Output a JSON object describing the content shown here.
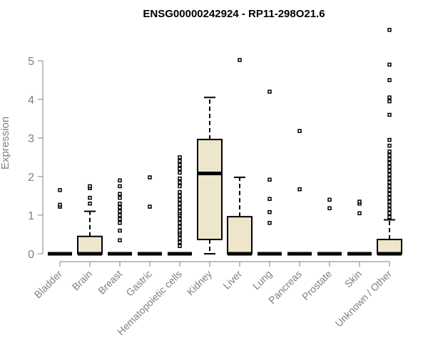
{
  "chart_data": {
    "type": "box",
    "title": "ENSG00000242924 - RP11-298O21.6",
    "xlabel": "",
    "ylabel": "Expression",
    "ylim": [
      0,
      5.8
    ],
    "yticks": [
      0,
      1,
      2,
      3,
      4,
      5
    ],
    "grid": false,
    "colors": {
      "box_fill": "#ede6cc",
      "stroke": "#000000",
      "axis_text": "#808080",
      "title": "#000000"
    },
    "categories": [
      "Bladder",
      "Brain",
      "Breast",
      "Gastric",
      "Hematopoietic cells",
      "Kidney",
      "Liver",
      "Lung",
      "Pancreas",
      "Prostate",
      "Skin",
      "Unknown / Other"
    ],
    "boxes": [
      {
        "q1": 0,
        "median": 0,
        "q3": 0,
        "whisker_low": 0,
        "whisker_high": 0,
        "outliers": [
          1.22,
          1.27,
          1.65
        ]
      },
      {
        "q1": 0,
        "median": 0,
        "q3": 0.45,
        "whisker_low": 0,
        "whisker_high": 1.1,
        "outliers": [
          1.3,
          1.45,
          1.7,
          1.75
        ]
      },
      {
        "q1": 0,
        "median": 0,
        "q3": 0,
        "whisker_low": 0,
        "whisker_high": 0,
        "outliers": [
          0.35,
          0.6,
          0.8,
          0.9,
          1.0,
          1.1,
          1.2,
          1.3,
          1.45,
          1.55,
          1.75,
          1.9
        ]
      },
      {
        "q1": 0,
        "median": 0,
        "q3": 0,
        "whisker_low": 0,
        "whisker_high": 0,
        "outliers": [
          1.22,
          1.98
        ]
      },
      {
        "q1": 0,
        "median": 0,
        "q3": 0,
        "whisker_low": 0,
        "whisker_high": 0,
        "outliers": [
          0.2,
          0.3,
          0.4,
          0.5,
          0.55,
          0.6,
          0.7,
          0.8,
          0.9,
          1.0,
          1.05,
          1.1,
          1.2,
          1.3,
          1.4,
          1.5,
          1.6,
          1.75,
          1.85,
          1.95,
          2.1,
          2.2,
          2.3,
          2.4,
          2.5
        ]
      },
      {
        "q1": 0.37,
        "median": 2.08,
        "q3": 2.96,
        "whisker_low": 0,
        "whisker_high": 4.05,
        "outliers": []
      },
      {
        "q1": 0,
        "median": 0,
        "q3": 0.96,
        "whisker_low": 0,
        "whisker_high": 1.98,
        "outliers": [
          5.02
        ]
      },
      {
        "q1": 0,
        "median": 0,
        "q3": 0,
        "whisker_low": 0,
        "whisker_high": 0,
        "outliers": [
          0.8,
          1.08,
          1.42,
          1.92,
          4.2
        ]
      },
      {
        "q1": 0,
        "median": 0,
        "q3": 0,
        "whisker_low": 0,
        "whisker_high": 0,
        "outliers": [
          1.67,
          3.18
        ]
      },
      {
        "q1": 0,
        "median": 0,
        "q3": 0,
        "whisker_low": 0,
        "whisker_high": 0,
        "outliers": [
          1.18,
          1.4
        ]
      },
      {
        "q1": 0,
        "median": 0,
        "q3": 0,
        "whisker_low": 0,
        "whisker_high": 0,
        "outliers": [
          1.05,
          1.3,
          1.35
        ]
      },
      {
        "q1": 0,
        "median": 0,
        "q3": 0.37,
        "whisker_low": 0,
        "whisker_high": 0.88,
        "outliers": [
          0.95,
          1.05,
          1.15,
          1.25,
          1.35,
          1.45,
          1.55,
          1.65,
          1.75,
          1.85,
          1.95,
          2.05,
          2.15,
          2.25,
          2.35,
          2.45,
          2.55,
          2.65,
          2.8,
          2.95,
          3.6,
          3.95,
          4.05,
          4.5,
          4.9,
          5.8
        ]
      }
    ]
  }
}
